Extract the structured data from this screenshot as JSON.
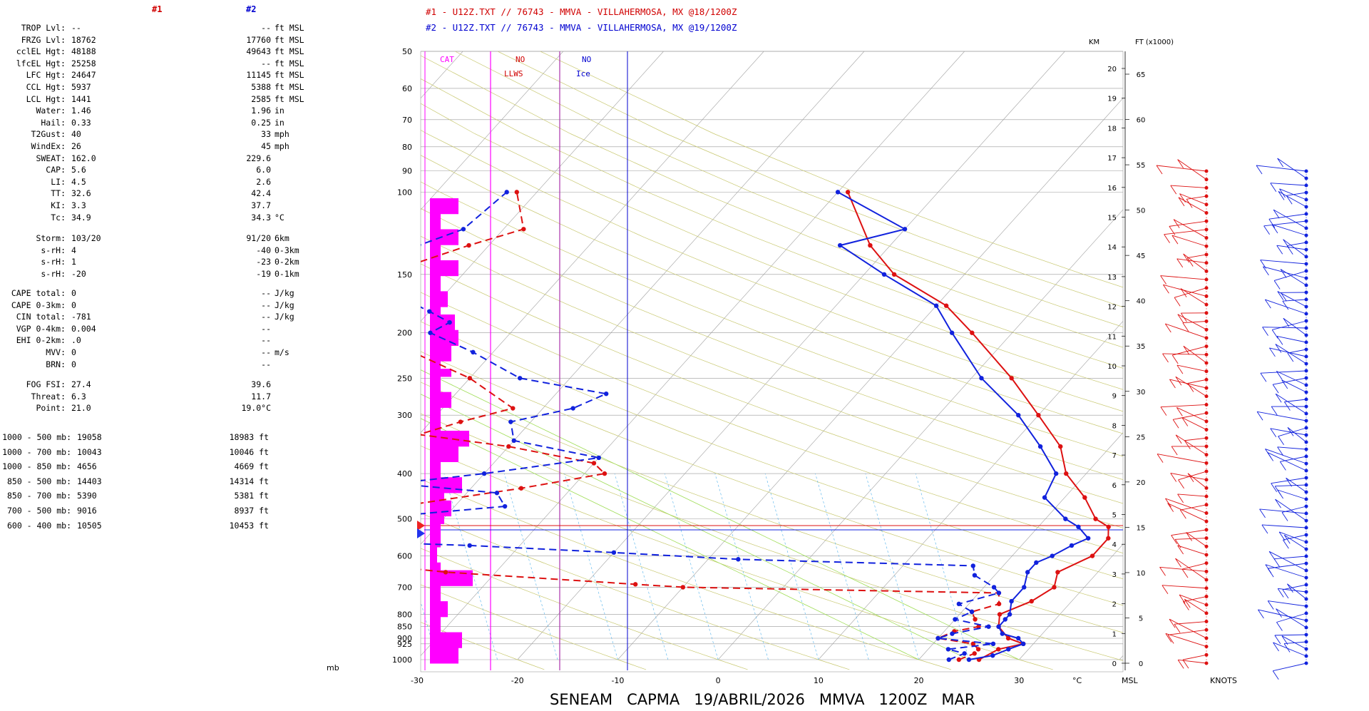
{
  "header": {
    "col1": "#1",
    "col2": "#2",
    "line1": "#1 - U12Z.TXT // 76743 - MMVA - VILLAHERMOSA, MX   @18/1200Z",
    "line2": "#2 - U12Z.TXT // 76743 - MMVA - VILLAHERMOSA, MX   @19/1200Z"
  },
  "indices": [
    {
      "label": "TROP Lvl:",
      "v1": "--",
      "v2": "--",
      "unit": "ft MSL"
    },
    {
      "label": "FRZG Lvl:",
      "v1": "18762",
      "v2": "17760",
      "unit": "ft MSL"
    },
    {
      "label": "cclEL Hgt:",
      "v1": "48188",
      "v2": "49643",
      "unit": "ft MSL"
    },
    {
      "label": "lfcEL Hgt:",
      "v1": "25258",
      "v2": "--",
      "unit": "ft MSL"
    },
    {
      "label": "LFC Hgt:",
      "v1": "24647",
      "v2": "11145",
      "unit": "ft MSL"
    },
    {
      "label": "CCL Hgt:",
      "v1": "5937",
      "v2": "5388",
      "unit": "ft MSL"
    },
    {
      "label": "LCL Hgt:",
      "v1": "1441",
      "v2": "2585",
      "unit": "ft MSL"
    },
    {
      "label": "Water:",
      "v1": "1.46",
      "v2": "1.96",
      "unit": "in"
    },
    {
      "label": "Hail:",
      "v1": "0.33",
      "v2": "0.25",
      "unit": "in"
    },
    {
      "label": "T2Gust:",
      "v1": "40",
      "v2": "33",
      "unit": "mph"
    },
    {
      "label": "WindEx:",
      "v1": "26",
      "v2": "45",
      "unit": "mph"
    },
    {
      "label": "SWEAT:",
      "v1": "162.0",
      "v2": "229.6",
      "unit": ""
    },
    {
      "label": "CAP:",
      "v1": "5.6",
      "v2": "6.0",
      "unit": ""
    },
    {
      "label": "LI:",
      "v1": "4.5",
      "v2": "2.6",
      "unit": ""
    },
    {
      "label": "TT:",
      "v1": "32.6",
      "v2": "42.4",
      "unit": ""
    },
    {
      "label": "KI:",
      "v1": "3.3",
      "v2": "37.7",
      "unit": ""
    },
    {
      "label": "Tc:",
      "v1": "34.9",
      "v2": "34.3",
      "unit": "°C"
    }
  ],
  "storm": [
    {
      "label": "Storm:",
      "v1": "103/20",
      "v2": "91/20",
      "unit": "6km"
    },
    {
      "label": "s-rH:",
      "v1": "4",
      "v2": "-40",
      "unit": "0-3km"
    },
    {
      "label": "s-rH:",
      "v1": "1",
      "v2": "-23",
      "unit": "0-2km"
    },
    {
      "label": "s-rH:",
      "v1": "-20",
      "v2": "-19",
      "unit": "0-1km"
    }
  ],
  "cape": [
    {
      "label": "CAPE total:",
      "v1": "0",
      "v2": "--",
      "unit": "J/kg"
    },
    {
      "label": "CAPE 0-3km:",
      "v1": "0",
      "v2": "--",
      "unit": "J/kg"
    },
    {
      "label": "CIN total:",
      "v1": "-781",
      "v2": "--",
      "unit": "J/kg"
    },
    {
      "label": "VGP 0-4km:",
      "v1": "0.004",
      "v2": "--",
      "unit": ""
    },
    {
      "label": "EHI 0-2km:",
      "v1": ".0",
      "v2": "--",
      "unit": ""
    },
    {
      "label": "MVV:",
      "v1": "0",
      "v2": "--",
      "unit": "m/s"
    },
    {
      "label": "BRN:",
      "v1": "0",
      "v2": "--",
      "unit": ""
    }
  ],
  "fog": [
    {
      "label": "FOG FSI:",
      "v1": "27.4",
      "v2": "39.6",
      "unit": ""
    },
    {
      "label": "Threat:",
      "v1": "6.3",
      "v2": "11.7",
      "unit": ""
    },
    {
      "label": "Point:",
      "v1": "21.0",
      "v2": "19.0°C",
      "unit": ""
    }
  ],
  "thickness": [
    {
      "label": "1000 - 500 mb:",
      "v1": "19058",
      "v2": "18983 ft"
    },
    {
      "label": "1000 - 700 mb:",
      "v1": "10043",
      "v2": "10046 ft"
    },
    {
      "label": "1000 - 850 mb:",
      "v1": "4656",
      "v2": "4669 ft"
    },
    {
      "label": "850 - 500 mb:",
      "v1": "14403",
      "v2": "14314 ft"
    },
    {
      "label": "850 - 700 mb:",
      "v1": "5390",
      "v2": "5381 ft"
    },
    {
      "label": "700 - 500 mb:",
      "v1": "9016",
      "v2": "8937 ft"
    },
    {
      "label": "600 - 400 mb:",
      "v1": "10505",
      "v2": "10453 ft"
    }
  ],
  "colors": {
    "series1": "#dd1111",
    "series2": "#1122dd",
    "magenta": "#ff00ff",
    "grid": "#b0b0b0",
    "dryadiabat": "#c8c870",
    "mixing": "#66bbee"
  },
  "labels": {
    "cat": "CAT",
    "no1": "NO",
    "llws": "LLWS",
    "no2": "NO",
    "ice": "Ice",
    "km": "KM",
    "ft": "FT (x1000)",
    "mb": "mb",
    "degc": "°C",
    "msl": "MSL",
    "knots": "KNOTS",
    "footer": "SENEAM   CAPMA   19/ABRIL/2026   MMVA   1200Z   MAR"
  },
  "chart_data": {
    "type": "line",
    "title": "SENEAM   CAPMA   19/ABRIL/2026   MMVA   1200Z   MAR",
    "xlabel": "°C",
    "ylabel": "mb",
    "xlim": [
      -30,
      40
    ],
    "pressure_levels": [
      1000,
      925,
      900,
      850,
      800,
      700,
      600,
      500,
      400,
      300,
      250,
      200,
      150,
      100,
      90,
      80,
      70,
      60,
      50
    ],
    "x_ticks": [
      -30,
      -20,
      -10,
      0,
      10,
      20,
      30
    ],
    "km_ticks": [
      0,
      1,
      2,
      3,
      4,
      5,
      6,
      7,
      8,
      9,
      10,
      11,
      12,
      13,
      14,
      15,
      16,
      17,
      18,
      19,
      20
    ],
    "ft_ticks": [
      0,
      5,
      10,
      15,
      20,
      25,
      30,
      35,
      40,
      45,
      50,
      55,
      60,
      65
    ],
    "series": [
      {
        "name": "#1",
        "kind": "temperature",
        "points": [
          [
            1000,
            26
          ],
          [
            950,
            27
          ],
          [
            925,
            29
          ],
          [
            900,
            27
          ],
          [
            850,
            25
          ],
          [
            800,
            24
          ],
          [
            750,
            26
          ],
          [
            700,
            27
          ],
          [
            650,
            26
          ],
          [
            600,
            28
          ],
          [
            550,
            28
          ],
          [
            520,
            27
          ],
          [
            500,
            25
          ],
          [
            450,
            22
          ],
          [
            400,
            18
          ],
          [
            350,
            15
          ],
          [
            300,
            10
          ],
          [
            250,
            4
          ],
          [
            200,
            -4
          ],
          [
            175,
            -9
          ],
          [
            150,
            -17
          ],
          [
            130,
            -22
          ],
          [
            100,
            -29
          ]
        ]
      },
      {
        "name": "#1",
        "kind": "dewpoint",
        "points": [
          [
            1000,
            24
          ],
          [
            970,
            25
          ],
          [
            950,
            25
          ],
          [
            925,
            24
          ],
          [
            900,
            20
          ],
          [
            870,
            21
          ],
          [
            850,
            23
          ],
          [
            820,
            22
          ],
          [
            790,
            21
          ],
          [
            760,
            23
          ],
          [
            720,
            22
          ],
          [
            700,
            -10
          ],
          [
            690,
            -15
          ],
          [
            650,
            -35
          ],
          [
            620,
            -45
          ],
          [
            580,
            -52
          ],
          [
            560,
            -57
          ],
          [
            520,
            -60
          ],
          [
            500,
            -55
          ],
          [
            480,
            -48
          ],
          [
            430,
            -35
          ],
          [
            400,
            -28
          ],
          [
            380,
            -30
          ],
          [
            350,
            -40
          ],
          [
            330,
            -50
          ],
          [
            310,
            -47
          ],
          [
            290,
            -43
          ],
          [
            250,
            -50
          ],
          [
            220,
            -58
          ],
          [
            200,
            -68
          ],
          [
            180,
            -72
          ],
          [
            160,
            -70
          ],
          [
            150,
            -68
          ],
          [
            130,
            -62
          ],
          [
            120,
            -58
          ],
          [
            100,
            -62
          ]
        ]
      },
      {
        "name": "#2",
        "kind": "temperature",
        "points": [
          [
            1000,
            25
          ],
          [
            980,
            27
          ],
          [
            950,
            28
          ],
          [
            925,
            29
          ],
          [
            900,
            28
          ],
          [
            880,
            26
          ],
          [
            850,
            25
          ],
          [
            820,
            25
          ],
          [
            800,
            25
          ],
          [
            750,
            24
          ],
          [
            700,
            24
          ],
          [
            650,
            23
          ],
          [
            620,
            23
          ],
          [
            600,
            24
          ],
          [
            570,
            25
          ],
          [
            550,
            26
          ],
          [
            520,
            24
          ],
          [
            500,
            22
          ],
          [
            450,
            18
          ],
          [
            400,
            17
          ],
          [
            350,
            13
          ],
          [
            300,
            8
          ],
          [
            250,
            1
          ],
          [
            200,
            -6
          ],
          [
            175,
            -10
          ],
          [
            150,
            -18
          ],
          [
            130,
            -25
          ],
          [
            120,
            -20
          ],
          [
            100,
            -30
          ]
        ]
      },
      {
        "name": "#2",
        "kind": "dewpoint",
        "points": [
          [
            1000,
            23
          ],
          [
            970,
            24
          ],
          [
            950,
            22
          ],
          [
            925,
            26
          ],
          [
            900,
            20
          ],
          [
            880,
            21
          ],
          [
            850,
            24
          ],
          [
            820,
            20
          ],
          [
            790,
            21
          ],
          [
            760,
            19
          ],
          [
            720,
            22
          ],
          [
            700,
            21
          ],
          [
            660,
            18
          ],
          [
            630,
            17
          ],
          [
            610,
            -7
          ],
          [
            590,
            -20
          ],
          [
            570,
            -35
          ],
          [
            560,
            -46
          ],
          [
            540,
            -58
          ],
          [
            520,
            -55
          ],
          [
            500,
            -48
          ],
          [
            470,
            -35
          ],
          [
            440,
            -37
          ],
          [
            420,
            -48
          ],
          [
            400,
            -40
          ],
          [
            370,
            -30
          ],
          [
            340,
            -40
          ],
          [
            310,
            -42
          ],
          [
            290,
            -37
          ],
          [
            270,
            -35
          ],
          [
            250,
            -45
          ],
          [
            220,
            -52
          ],
          [
            200,
            -58
          ],
          [
            190,
            -57
          ],
          [
            180,
            -60
          ],
          [
            160,
            -67
          ],
          [
            150,
            -68
          ],
          [
            130,
            -67
          ],
          [
            120,
            -64
          ],
          [
            100,
            -63
          ]
        ]
      }
    ],
    "wind_barbs": {
      "series1_count": 60,
      "series2_count": 70
    }
  }
}
